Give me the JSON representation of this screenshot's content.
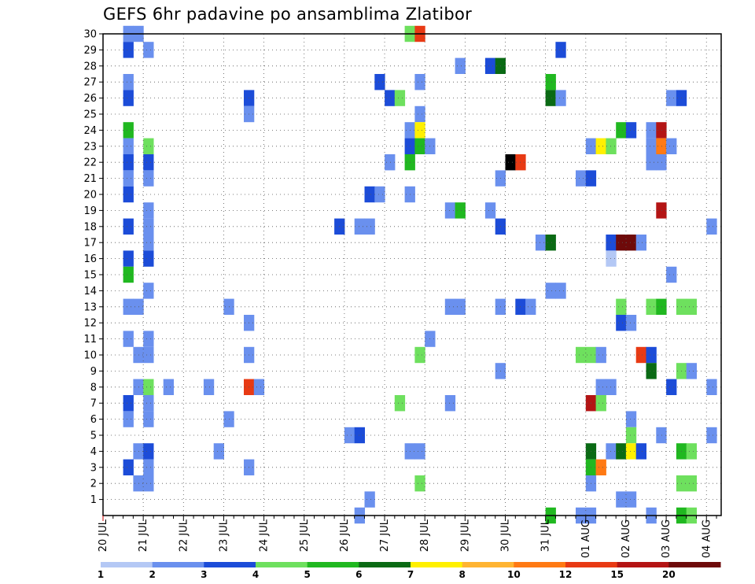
{
  "chart_data": {
    "type": "heatmap",
    "title": "GEFS 6hr padavine po ansamblima Zlatibor",
    "y_tick_labels": [
      "1",
      "2",
      "3",
      "4",
      "5",
      "6",
      "7",
      "8",
      "9",
      "10",
      "11",
      "12",
      "13",
      "14",
      "15",
      "16",
      "17",
      "18",
      "19",
      "20",
      "21",
      "22",
      "23",
      "24",
      "25",
      "26",
      "27",
      "28",
      "29",
      "30"
    ],
    "y_range": [
      0,
      30
    ],
    "x_tick_labels": [
      "20 JUL",
      "21 JUL",
      "22 JUL",
      "23 JUL",
      "24 JUL",
      "25 JUL",
      "26 JUL",
      "27 JUL",
      "28 JUL",
      "29 JUL",
      "30 JUL",
      "31 JUL",
      "01 AUG",
      "02 AUG",
      "03 AUG",
      "04 AUG"
    ],
    "x_range_days": [
      0,
      15.25
    ],
    "x_step": "6hr",
    "grid": true,
    "colorbar": {
      "tick_labels": [
        "1",
        "2",
        "3",
        "4",
        "5",
        "6",
        "7",
        "8",
        "10",
        "12",
        "15",
        "20"
      ],
      "colors": [
        "#b4c8f5",
        "#6a90ee",
        "#1c4cd8",
        "#6ee05e",
        "#20b820",
        "#0a6a14",
        "#fff000",
        "#ffb432",
        "#ff7a14",
        "#e83a14",
        "#b41414",
        "#6e0a0a"
      ]
    },
    "cells": [
      [
        0.5,
        30,
        1
      ],
      [
        0.75,
        30,
        1
      ],
      [
        0.5,
        29,
        2
      ],
      [
        1.0,
        29,
        1
      ],
      [
        0.5,
        27,
        1
      ],
      [
        0.5,
        26,
        2
      ],
      [
        0.5,
        24,
        4
      ],
      [
        0.5,
        23,
        1
      ],
      [
        1.0,
        23,
        3
      ],
      [
        0.5,
        22,
        2
      ],
      [
        1.0,
        22,
        2
      ],
      [
        0.5,
        21,
        1
      ],
      [
        1.0,
        21,
        1
      ],
      [
        0.5,
        20,
        2
      ],
      [
        1.0,
        19,
        1
      ],
      [
        0.5,
        18,
        2
      ],
      [
        1.0,
        18,
        1
      ],
      [
        1.0,
        17,
        1
      ],
      [
        0.5,
        16,
        2
      ],
      [
        1.0,
        16,
        2
      ],
      [
        0.5,
        15,
        4
      ],
      [
        0.5,
        13,
        1
      ],
      [
        0.75,
        13,
        1
      ],
      [
        1.0,
        14,
        1
      ],
      [
        0.5,
        11,
        1
      ],
      [
        1.0,
        11,
        1
      ],
      [
        0.75,
        10,
        1
      ],
      [
        1.0,
        10,
        1
      ],
      [
        0.75,
        8,
        1
      ],
      [
        1.0,
        8,
        3
      ],
      [
        1.5,
        8,
        1
      ],
      [
        1.0,
        7,
        1
      ],
      [
        0.5,
        7,
        2
      ],
      [
        0.5,
        6,
        1
      ],
      [
        1.0,
        6,
        1
      ],
      [
        0.75,
        4,
        1
      ],
      [
        1.0,
        4,
        2
      ],
      [
        0.5,
        3,
        2
      ],
      [
        1.0,
        3,
        1
      ],
      [
        0.75,
        2,
        1
      ],
      [
        1.0,
        2,
        1
      ],
      [
        3.0,
        13,
        1
      ],
      [
        3.0,
        6,
        1
      ],
      [
        2.75,
        4,
        1
      ],
      [
        2.5,
        8,
        1
      ],
      [
        3.5,
        26,
        2
      ],
      [
        3.5,
        25,
        1
      ],
      [
        3.5,
        12,
        1
      ],
      [
        3.5,
        10,
        1
      ],
      [
        3.5,
        8,
        9
      ],
      [
        3.75,
        8,
        1
      ],
      [
        3.5,
        3,
        1
      ],
      [
        5.75,
        18,
        2
      ],
      [
        6.25,
        18,
        1
      ],
      [
        6.5,
        18,
        1
      ],
      [
        6.0,
        5,
        1
      ],
      [
        6.25,
        5,
        2
      ],
      [
        6.5,
        1,
        1
      ],
      [
        6.25,
        0,
        1
      ],
      [
        7.5,
        30,
        3
      ],
      [
        7.75,
        30,
        9
      ],
      [
        6.5,
        20,
        2
      ],
      [
        6.75,
        20,
        1
      ],
      [
        6.75,
        27,
        2
      ],
      [
        7.0,
        26,
        2
      ],
      [
        7.25,
        26,
        3
      ],
      [
        7.75,
        25,
        1
      ],
      [
        7.75,
        27,
        1
      ],
      [
        7.5,
        24,
        1
      ],
      [
        7.75,
        24,
        6
      ],
      [
        7.5,
        23,
        2
      ],
      [
        7.75,
        23,
        4
      ],
      [
        8.0,
        23,
        1
      ],
      [
        7.0,
        22,
        1
      ],
      [
        7.5,
        22,
        4
      ],
      [
        7.5,
        20,
        1
      ],
      [
        7.75,
        10,
        3
      ],
      [
        8.0,
        11,
        1
      ],
      [
        7.25,
        7,
        3
      ],
      [
        7.5,
        4,
        1
      ],
      [
        7.75,
        4,
        1
      ],
      [
        7.75,
        2,
        3
      ],
      [
        8.75,
        28,
        1
      ],
      [
        9.5,
        28,
        2
      ],
      [
        9.75,
        28,
        5
      ],
      [
        8.5,
        19,
        1
      ],
      [
        8.75,
        19,
        4
      ],
      [
        9.5,
        19,
        1
      ],
      [
        9.75,
        18,
        2
      ],
      [
        8.5,
        13,
        1
      ],
      [
        8.75,
        13,
        1
      ],
      [
        9.75,
        13,
        1
      ],
      [
        10.25,
        13,
        2
      ],
      [
        10.5,
        13,
        1
      ],
      [
        9.75,
        9,
        1
      ],
      [
        8.5,
        7,
        1
      ],
      [
        9.75,
        21,
        1
      ],
      [
        10.0,
        22,
        12
      ],
      [
        10.25,
        22,
        9
      ],
      [
        11.0,
        27,
        4
      ],
      [
        11.0,
        26,
        5
      ],
      [
        11.25,
        26,
        1
      ],
      [
        11.25,
        29,
        2
      ],
      [
        10.75,
        17,
        1
      ],
      [
        11.0,
        17,
        5
      ],
      [
        11.0,
        14,
        1
      ],
      [
        11.25,
        14,
        1
      ],
      [
        11.0,
        0,
        4
      ],
      [
        11.75,
        0,
        1
      ],
      [
        12.0,
        0,
        1
      ],
      [
        11.75,
        21,
        1
      ],
      [
        12.0,
        21,
        2
      ],
      [
        12.0,
        23,
        1
      ],
      [
        12.25,
        23,
        6
      ],
      [
        12.5,
        23,
        3
      ],
      [
        12.5,
        17,
        2
      ],
      [
        12.75,
        17,
        11
      ],
      [
        13.0,
        17,
        11
      ],
      [
        13.25,
        17,
        1
      ],
      [
        12.5,
        16,
        0
      ],
      [
        12.75,
        24,
        4
      ],
      [
        13.0,
        24,
        2
      ],
      [
        12.75,
        13,
        3
      ],
      [
        12.75,
        12,
        2
      ],
      [
        13.0,
        12,
        1
      ],
      [
        11.75,
        10,
        3
      ],
      [
        12.0,
        10,
        3
      ],
      [
        12.25,
        10,
        1
      ],
      [
        13.25,
        10,
        9
      ],
      [
        13.5,
        10,
        2
      ],
      [
        13.5,
        9,
        5
      ],
      [
        12.25,
        8,
        1
      ],
      [
        12.5,
        8,
        1
      ],
      [
        12.0,
        7,
        10
      ],
      [
        12.25,
        7,
        3
      ],
      [
        13.0,
        6,
        1
      ],
      [
        13.0,
        5,
        3
      ],
      [
        12.5,
        4,
        1
      ],
      [
        12.75,
        4,
        5
      ],
      [
        13.0,
        4,
        6
      ],
      [
        13.25,
        4,
        2
      ],
      [
        12.0,
        4,
        5
      ],
      [
        12.0,
        3,
        4
      ],
      [
        12.25,
        3,
        8
      ],
      [
        12.0,
        2,
        1
      ],
      [
        12.75,
        1,
        1
      ],
      [
        13.0,
        1,
        1
      ],
      [
        13.5,
        24,
        1
      ],
      [
        13.75,
        24,
        10
      ],
      [
        13.5,
        23,
        1
      ],
      [
        13.75,
        23,
        8
      ],
      [
        14.0,
        23,
        1
      ],
      [
        13.5,
        22,
        1
      ],
      [
        13.75,
        22,
        1
      ],
      [
        13.75,
        19,
        10
      ],
      [
        14.0,
        15,
        1
      ],
      [
        13.5,
        13,
        3
      ],
      [
        13.75,
        13,
        4
      ],
      [
        14.25,
        13,
        3
      ],
      [
        14.5,
        13,
        3
      ],
      [
        14.0,
        26,
        1
      ],
      [
        14.25,
        26,
        2
      ],
      [
        14.0,
        8,
        2
      ],
      [
        13.75,
        5,
        1
      ],
      [
        14.25,
        9,
        3
      ],
      [
        14.5,
        9,
        1
      ],
      [
        14.25,
        4,
        4
      ],
      [
        14.5,
        4,
        3
      ],
      [
        14.25,
        2,
        3
      ],
      [
        14.5,
        2,
        3
      ],
      [
        14.25,
        0,
        4
      ],
      [
        14.5,
        0,
        3
      ],
      [
        13.5,
        0,
        1
      ],
      [
        15.0,
        18,
        1
      ],
      [
        15.0,
        8,
        1
      ],
      [
        15.0,
        5,
        1
      ]
    ]
  }
}
